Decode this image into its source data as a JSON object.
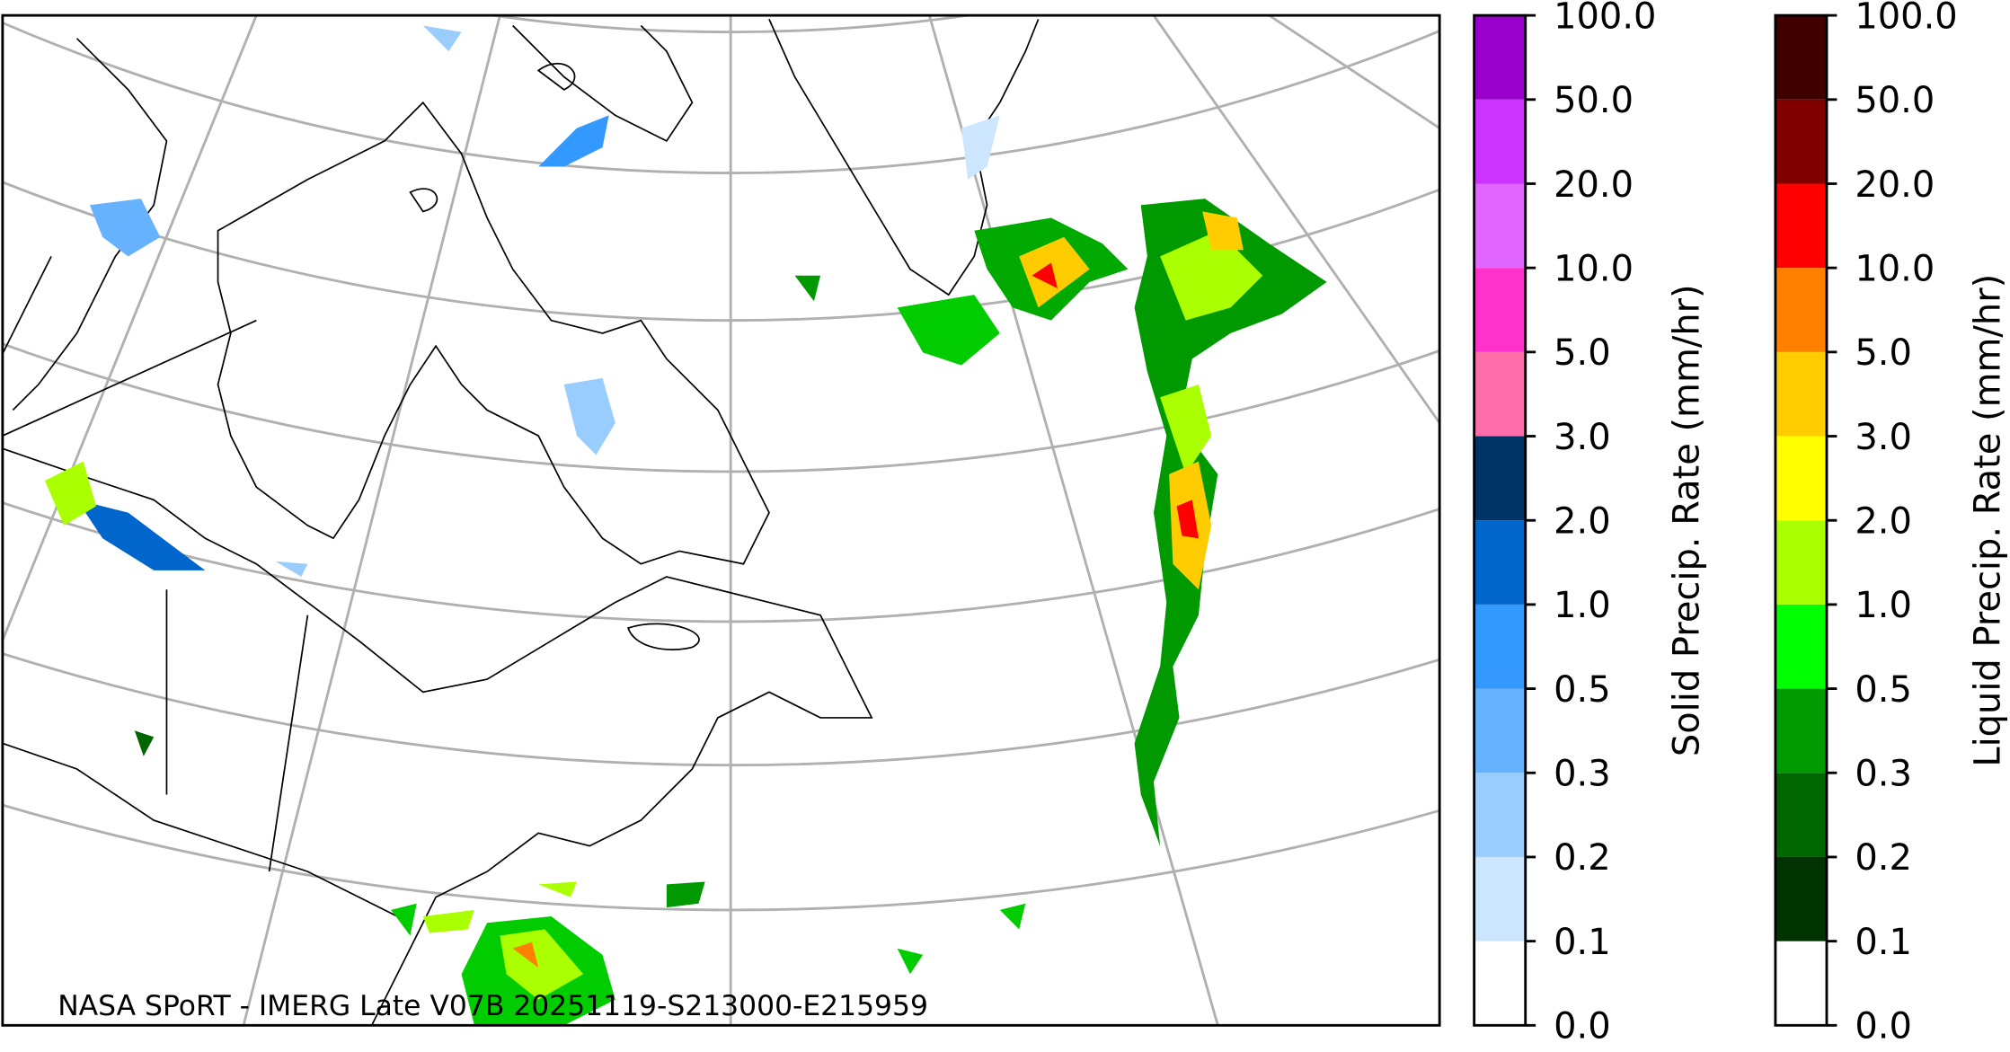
{
  "credit": "NASA SPoRT - IMERG Late V07B 20251119-S213000-E215959",
  "colorbars": [
    {
      "label": "Solid Precip. Rate (mm/hr)",
      "ticks": [
        "0.0",
        "0.1",
        "0.2",
        "0.3",
        "0.5",
        "1.0",
        "2.0",
        "3.0",
        "5.0",
        "10.0",
        "20.0",
        "50.0",
        "100.0"
      ],
      "colors": [
        "#ffffff",
        "#cce6ff",
        "#99ccff",
        "#66b2ff",
        "#3399ff",
        "#0066cc",
        "#003366",
        "#ff6eaa",
        "#ff33cc",
        "#e066ff",
        "#cc33ff",
        "#9900cc"
      ]
    },
    {
      "label": "Liquid Precip. Rate (mm/hr)",
      "ticks": [
        "0.0",
        "0.1",
        "0.2",
        "0.3",
        "0.5",
        "1.0",
        "2.0",
        "3.0",
        "5.0",
        "10.0",
        "20.0",
        "50.0",
        "100.0"
      ],
      "colors": [
        "#ffffff",
        "#003300",
        "#006600",
        "#009900",
        "#00ff00",
        "#aaff00",
        "#ffff00",
        "#ffcc00",
        "#ff8000",
        "#ff0000",
        "#800000",
        "#400000"
      ]
    }
  ]
}
